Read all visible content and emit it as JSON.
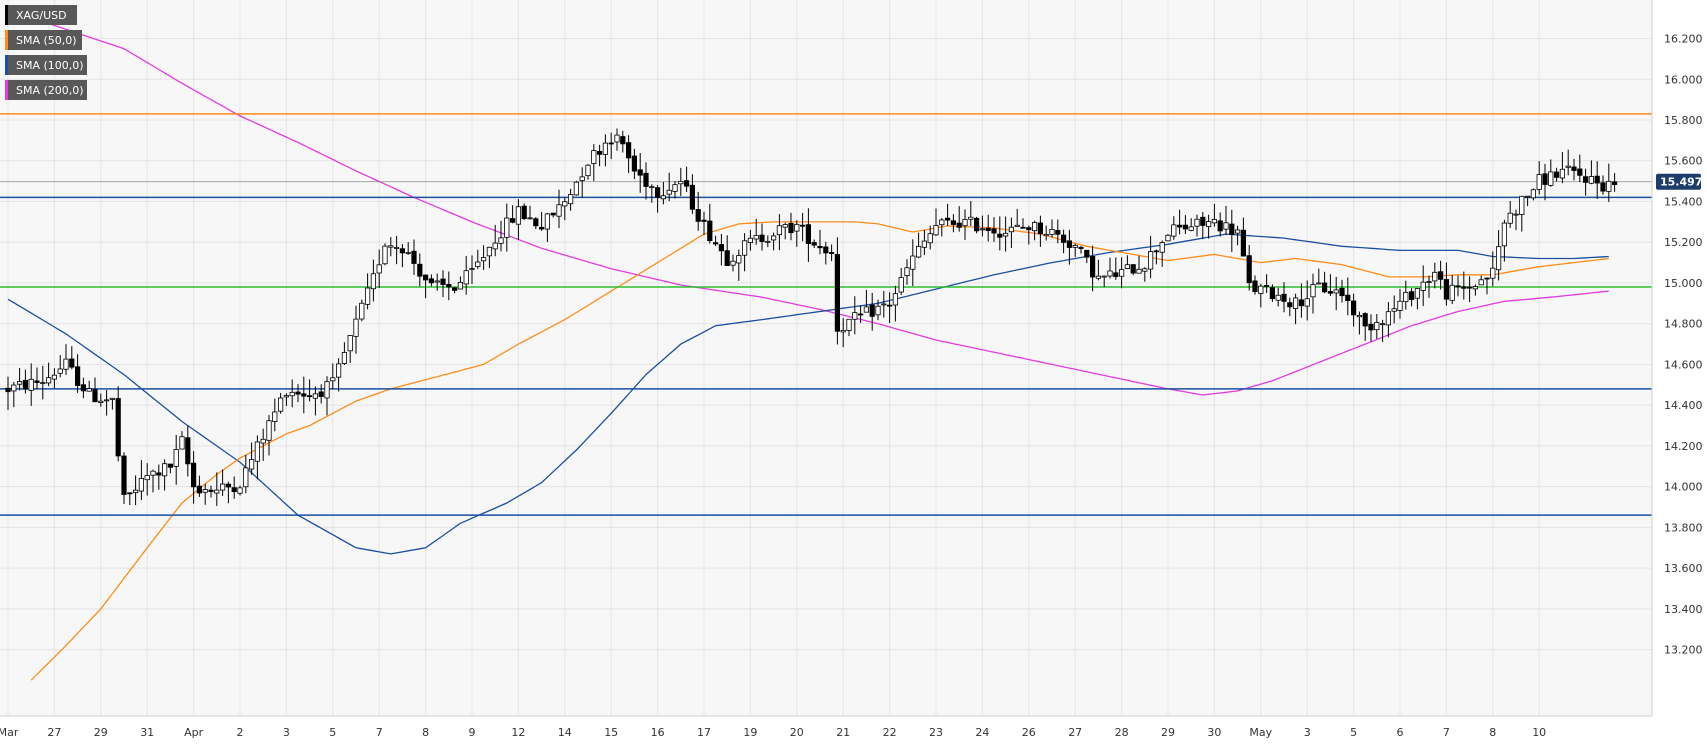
{
  "chart_data": {
    "type": "candlestick",
    "symbol": "XAG/USD",
    "ylim": [
      13.1,
      16.34
    ],
    "y_ticks": [
      "13.200",
      "13.400",
      "13.600",
      "13.800",
      "14.000",
      "14.200",
      "14.400",
      "14.600",
      "14.800",
      "15.000",
      "15.200",
      "15.400",
      "15.600",
      "15.800",
      "16.000",
      "16.200"
    ],
    "x_ticks": [
      {
        "label": "Mar",
        "i": 0
      },
      {
        "label": "27",
        "i": 8
      },
      {
        "label": "29",
        "i": 16
      },
      {
        "label": "31",
        "i": 24
      },
      {
        "label": "Apr",
        "i": 32
      },
      {
        "label": "2",
        "i": 40
      },
      {
        "label": "3",
        "i": 48
      },
      {
        "label": "5",
        "i": 56
      },
      {
        "label": "7",
        "i": 64
      },
      {
        "label": "8",
        "i": 72
      },
      {
        "label": "9",
        "i": 80
      },
      {
        "label": "12",
        "i": 88
      },
      {
        "label": "14",
        "i": 96
      },
      {
        "label": "15",
        "i": 104
      },
      {
        "label": "16",
        "i": 112
      },
      {
        "label": "17",
        "i": 120
      },
      {
        "label": "19",
        "i": 128
      },
      {
        "label": "20",
        "i": 136
      },
      {
        "label": "21",
        "i": 144
      },
      {
        "label": "22",
        "i": 152
      },
      {
        "label": "23",
        "i": 160
      },
      {
        "label": "24",
        "i": 168
      },
      {
        "label": "26",
        "i": 176
      },
      {
        "label": "27",
        "i": 184
      },
      {
        "label": "28",
        "i": 192
      },
      {
        "label": "29",
        "i": 200
      },
      {
        "label": "30",
        "i": 208
      },
      {
        "label": "May",
        "i": 216
      },
      {
        "label": "3",
        "i": 224
      },
      {
        "label": "5",
        "i": 232
      },
      {
        "label": "6",
        "i": 240
      },
      {
        "label": "7",
        "i": 248
      },
      {
        "label": "8",
        "i": 256
      },
      {
        "label": "10",
        "i": 264
      }
    ],
    "last_price": "15.497",
    "horizontal_levels": [
      {
        "value": 15.83,
        "color": "#ff8c1a"
      },
      {
        "value": 15.42,
        "color": "#1b4fa0"
      },
      {
        "value": 14.98,
        "color": "#2fbf2f"
      },
      {
        "value": 14.48,
        "color": "#1b4fa0"
      },
      {
        "value": 13.86,
        "color": "#1b4fa0"
      }
    ],
    "current_price_line": 15.497,
    "legend": [
      {
        "label": "XAG/USD",
        "color": "#000000"
      },
      {
        "label": "SMA (50,0)",
        "color": "#ff8c1a"
      },
      {
        "label": "SMA (100,0)",
        "color": "#1b4fa0"
      },
      {
        "label": "SMA (200,0)",
        "color": "#e23be2"
      }
    ],
    "price_anchors": [
      [
        0,
        14.48
      ],
      [
        6,
        14.52
      ],
      [
        10,
        14.6
      ],
      [
        14,
        14.45
      ],
      [
        18,
        14.42
      ],
      [
        19,
        14.15
      ],
      [
        20,
        13.93
      ],
      [
        24,
        14.05
      ],
      [
        28,
        14.1
      ],
      [
        30,
        14.22
      ],
      [
        32,
        14.0
      ],
      [
        36,
        13.98
      ],
      [
        40,
        14.02
      ],
      [
        44,
        14.25
      ],
      [
        48,
        14.48
      ],
      [
        52,
        14.45
      ],
      [
        56,
        14.5
      ],
      [
        60,
        14.8
      ],
      [
        63,
        15.02
      ],
      [
        65,
        15.2
      ],
      [
        68,
        15.18
      ],
      [
        70,
        15.1
      ],
      [
        73,
        14.98
      ],
      [
        77,
        14.98
      ],
      [
        80,
        15.05
      ],
      [
        84,
        15.22
      ],
      [
        88,
        15.35
      ],
      [
        92,
        15.28
      ],
      [
        96,
        15.4
      ],
      [
        100,
        15.6
      ],
      [
        104,
        15.72
      ],
      [
        106,
        15.68
      ],
      [
        108,
        15.55
      ],
      [
        112,
        15.45
      ],
      [
        116,
        15.5
      ],
      [
        120,
        15.28
      ],
      [
        124,
        15.12
      ],
      [
        128,
        15.2
      ],
      [
        132,
        15.25
      ],
      [
        136,
        15.28
      ],
      [
        139,
        15.2
      ],
      [
        142,
        15.15
      ],
      [
        143,
        14.78
      ],
      [
        146,
        14.82
      ],
      [
        148,
        14.85
      ],
      [
        152,
        14.9
      ],
      [
        156,
        15.12
      ],
      [
        160,
        15.28
      ],
      [
        164,
        15.3
      ],
      [
        168,
        15.28
      ],
      [
        172,
        15.25
      ],
      [
        176,
        15.28
      ],
      [
        180,
        15.25
      ],
      [
        184,
        15.18
      ],
      [
        188,
        15.02
      ],
      [
        192,
        15.05
      ],
      [
        196,
        15.1
      ],
      [
        200,
        15.25
      ],
      [
        204,
        15.28
      ],
      [
        208,
        15.3
      ],
      [
        212,
        15.25
      ],
      [
        214,
        14.98
      ],
      [
        218,
        14.95
      ],
      [
        222,
        14.9
      ],
      [
        226,
        14.98
      ],
      [
        230,
        14.95
      ],
      [
        234,
        14.78
      ],
      [
        238,
        14.85
      ],
      [
        242,
        14.95
      ],
      [
        246,
        15.05
      ],
      [
        248,
        14.95
      ],
      [
        252,
        14.98
      ],
      [
        256,
        15.05
      ],
      [
        258,
        15.3
      ],
      [
        261,
        15.4
      ],
      [
        264,
        15.5
      ],
      [
        268,
        15.55
      ],
      [
        272,
        15.52
      ],
      [
        275,
        15.48
      ],
      [
        277,
        15.497
      ]
    ],
    "sma50_anchors": [
      [
        4,
        13.05
      ],
      [
        10,
        13.22
      ],
      [
        16,
        13.4
      ],
      [
        24,
        13.7
      ],
      [
        30,
        13.92
      ],
      [
        36,
        14.06
      ],
      [
        40,
        14.14
      ],
      [
        44,
        14.2
      ],
      [
        48,
        14.26
      ],
      [
        52,
        14.3
      ],
      [
        56,
        14.36
      ],
      [
        60,
        14.42
      ],
      [
        66,
        14.48
      ],
      [
        74,
        14.54
      ],
      [
        82,
        14.6
      ],
      [
        88,
        14.7
      ],
      [
        96,
        14.82
      ],
      [
        104,
        14.96
      ],
      [
        112,
        15.1
      ],
      [
        120,
        15.24
      ],
      [
        126,
        15.29
      ],
      [
        132,
        15.3
      ],
      [
        140,
        15.3
      ],
      [
        146,
        15.3
      ],
      [
        150,
        15.29
      ],
      [
        156,
        15.25
      ],
      [
        162,
        15.28
      ],
      [
        170,
        15.27
      ],
      [
        178,
        15.24
      ],
      [
        186,
        15.18
      ],
      [
        194,
        15.14
      ],
      [
        200,
        15.11
      ],
      [
        208,
        15.14
      ],
      [
        216,
        15.1
      ],
      [
        222,
        15.12
      ],
      [
        230,
        15.09
      ],
      [
        238,
        15.03
      ],
      [
        244,
        15.03
      ],
      [
        250,
        15.04
      ],
      [
        256,
        15.04
      ],
      [
        264,
        15.08
      ],
      [
        270,
        15.1
      ],
      [
        276,
        15.12
      ]
    ],
    "sma100_anchors": [
      [
        0,
        14.92
      ],
      [
        10,
        14.75
      ],
      [
        20,
        14.55
      ],
      [
        30,
        14.32
      ],
      [
        40,
        14.12
      ],
      [
        50,
        13.86
      ],
      [
        60,
        13.7
      ],
      [
        66,
        13.67
      ],
      [
        72,
        13.7
      ],
      [
        78,
        13.82
      ],
      [
        86,
        13.92
      ],
      [
        92,
        14.02
      ],
      [
        98,
        14.18
      ],
      [
        104,
        14.36
      ],
      [
        110,
        14.55
      ],
      [
        116,
        14.7
      ],
      [
        122,
        14.79
      ],
      [
        130,
        14.82
      ],
      [
        140,
        14.86
      ],
      [
        150,
        14.9
      ],
      [
        160,
        14.97
      ],
      [
        170,
        15.04
      ],
      [
        180,
        15.1
      ],
      [
        190,
        15.15
      ],
      [
        200,
        15.19
      ],
      [
        210,
        15.24
      ],
      [
        220,
        15.22
      ],
      [
        230,
        15.18
      ],
      [
        240,
        15.16
      ],
      [
        250,
        15.16
      ],
      [
        256,
        15.13
      ],
      [
        264,
        15.12
      ],
      [
        270,
        15.12
      ],
      [
        276,
        15.13
      ]
    ],
    "sma200_anchors": [
      [
        0,
        16.34
      ],
      [
        20,
        16.15
      ],
      [
        30,
        15.98
      ],
      [
        40,
        15.82
      ],
      [
        50,
        15.69
      ],
      [
        60,
        15.55
      ],
      [
        70,
        15.42
      ],
      [
        80,
        15.3
      ],
      [
        92,
        15.17
      ],
      [
        104,
        15.07
      ],
      [
        116,
        14.99
      ],
      [
        130,
        14.93
      ],
      [
        140,
        14.87
      ],
      [
        150,
        14.8
      ],
      [
        160,
        14.72
      ],
      [
        170,
        14.66
      ],
      [
        180,
        14.6
      ],
      [
        190,
        14.54
      ],
      [
        200,
        14.48
      ],
      [
        206,
        14.45
      ],
      [
        212,
        14.47
      ],
      [
        218,
        14.52
      ],
      [
        226,
        14.61
      ],
      [
        234,
        14.7
      ],
      [
        242,
        14.79
      ],
      [
        250,
        14.86
      ],
      [
        258,
        14.91
      ],
      [
        266,
        14.93
      ],
      [
        276,
        14.96
      ]
    ]
  }
}
